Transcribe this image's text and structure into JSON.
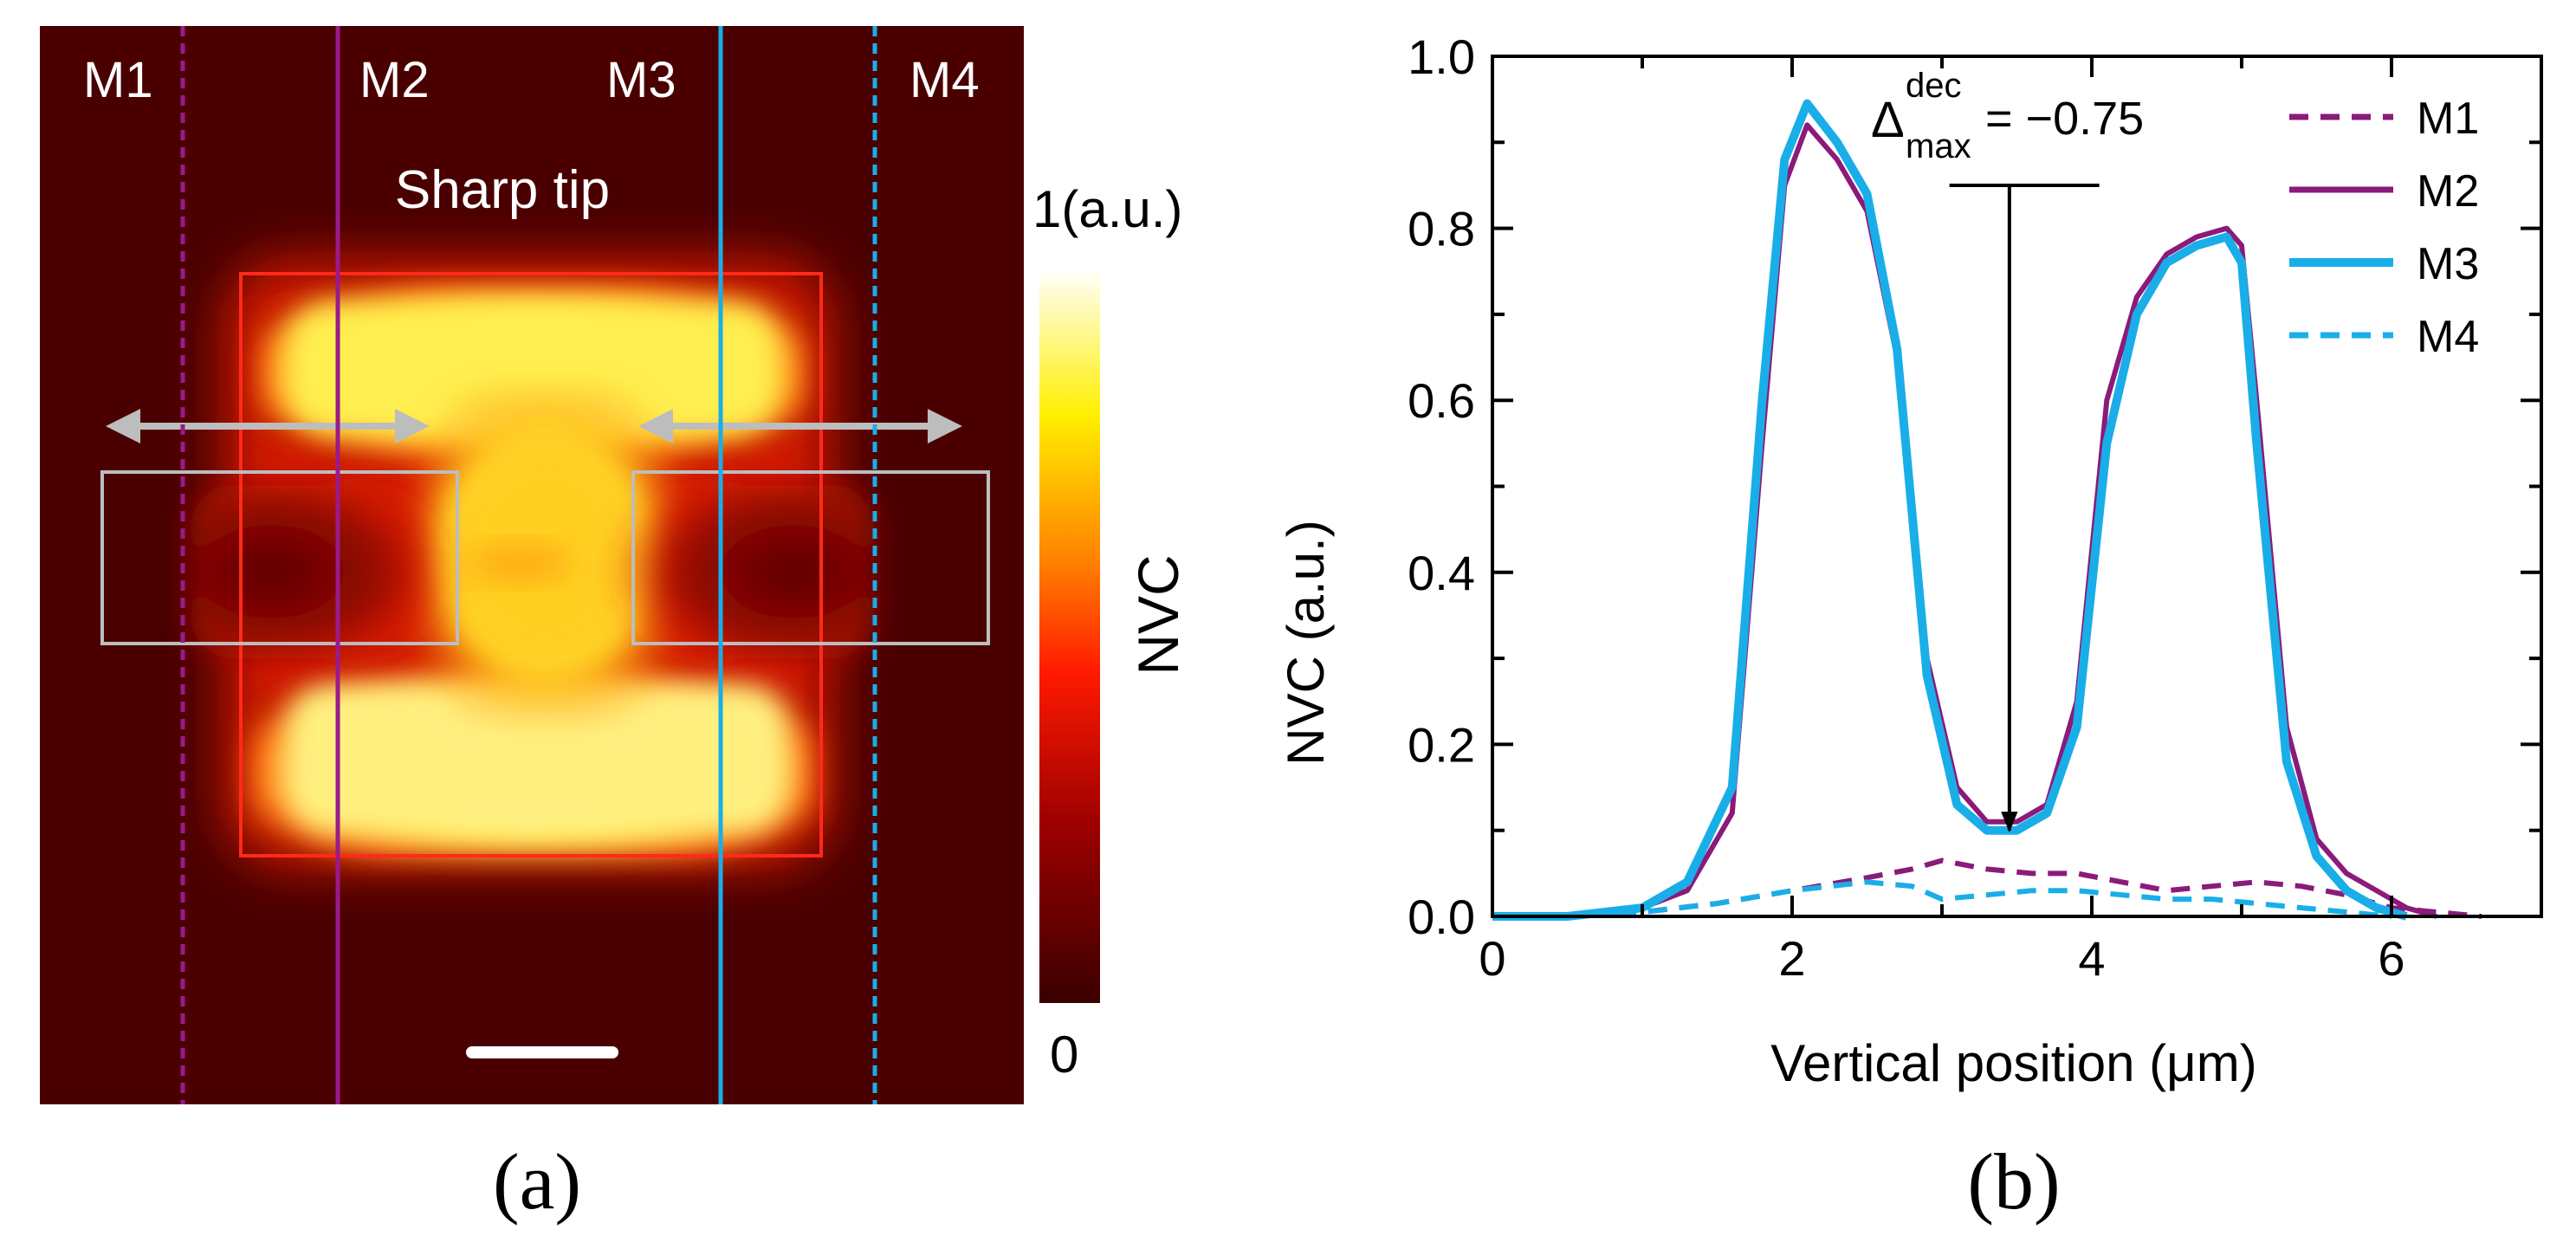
{
  "panel_a": {
    "caption": "(a)",
    "title": "Sharp tip",
    "line_labels": [
      "M1",
      "M2",
      "M3",
      "M4"
    ],
    "colorbar": {
      "max_label": "1(a.u.)",
      "min_label": "0",
      "label": "NVC"
    },
    "colors": {
      "M1": "#8b1a7a",
      "M2": "#8b1a7a",
      "M3": "#19aee8",
      "M4": "#19aee8",
      "box_red": "#ff2a1a",
      "box_gray": "#bdbdbd"
    }
  },
  "panel_b": {
    "caption": "(b)",
    "annotation": {
      "symbol": "Δ",
      "superscript": "dec",
      "subscript": "max",
      "value": "= −0.75"
    }
  },
  "chart_data": {
    "type": "line",
    "xlabel": "Vertical position (μm)",
    "ylabel": "NVC (a.u.)",
    "xlim": [
      0,
      7
    ],
    "ylim": [
      0,
      1.0
    ],
    "xticks": [
      0,
      2,
      4,
      6
    ],
    "yticks": [
      0.0,
      0.2,
      0.4,
      0.6,
      0.8,
      1.0
    ],
    "ytick_labels": [
      "0.0",
      "0.2",
      "0.4",
      "0.6",
      "0.8",
      "1.0"
    ],
    "legend_position": "top-right",
    "series": [
      {
        "name": "M1",
        "color": "#8b1a7a",
        "dash": "dashed",
        "x": [
          0,
          0.5,
          1.0,
          1.5,
          2.0,
          2.5,
          2.8,
          3.0,
          3.3,
          3.6,
          3.9,
          4.2,
          4.5,
          4.8,
          5.1,
          5.4,
          5.7,
          6.0,
          6.3,
          6.6
        ],
        "y": [
          0.0,
          0.0,
          0.005,
          0.015,
          0.03,
          0.045,
          0.055,
          0.065,
          0.055,
          0.05,
          0.05,
          0.04,
          0.03,
          0.035,
          0.04,
          0.035,
          0.025,
          0.01,
          0.005,
          0.0
        ]
      },
      {
        "name": "M2",
        "color": "#8b1a7a",
        "dash": "solid",
        "x": [
          0,
          0.5,
          1.0,
          1.3,
          1.6,
          1.8,
          1.95,
          2.1,
          2.3,
          2.5,
          2.7,
          2.9,
          3.1,
          3.3,
          3.5,
          3.7,
          3.9,
          4.1,
          4.3,
          4.5,
          4.7,
          4.9,
          5.0,
          5.1,
          5.3,
          5.5,
          5.7,
          5.9,
          6.1,
          6.3
        ],
        "y": [
          0.0,
          0.0,
          0.01,
          0.03,
          0.12,
          0.55,
          0.85,
          0.92,
          0.88,
          0.82,
          0.65,
          0.3,
          0.15,
          0.11,
          0.11,
          0.13,
          0.25,
          0.6,
          0.72,
          0.77,
          0.79,
          0.8,
          0.78,
          0.6,
          0.22,
          0.09,
          0.05,
          0.03,
          0.01,
          0.0
        ]
      },
      {
        "name": "M3",
        "color": "#19aee8",
        "dash": "solid",
        "x": [
          0,
          0.5,
          1.0,
          1.3,
          1.6,
          1.8,
          1.95,
          2.1,
          2.3,
          2.5,
          2.7,
          2.9,
          3.1,
          3.3,
          3.5,
          3.7,
          3.9,
          4.1,
          4.3,
          4.5,
          4.7,
          4.9,
          5.0,
          5.1,
          5.3,
          5.5,
          5.7,
          5.9,
          6.1
        ],
        "y": [
          0.0,
          0.0,
          0.01,
          0.04,
          0.15,
          0.6,
          0.88,
          0.945,
          0.9,
          0.84,
          0.66,
          0.28,
          0.13,
          0.1,
          0.1,
          0.12,
          0.22,
          0.55,
          0.7,
          0.76,
          0.78,
          0.79,
          0.76,
          0.55,
          0.18,
          0.07,
          0.03,
          0.01,
          0.0
        ]
      },
      {
        "name": "M4",
        "color": "#19aee8",
        "dash": "dashed",
        "x": [
          0,
          0.5,
          1.0,
          1.5,
          2.0,
          2.5,
          2.8,
          3.0,
          3.3,
          3.6,
          3.9,
          4.2,
          4.5,
          4.8,
          5.1,
          5.4,
          5.7,
          6.0
        ],
        "y": [
          0.0,
          0.0,
          0.005,
          0.015,
          0.03,
          0.04,
          0.035,
          0.02,
          0.025,
          0.03,
          0.03,
          0.025,
          0.02,
          0.02,
          0.015,
          0.01,
          0.005,
          0.0
        ]
      }
    ],
    "annotation_arrow": {
      "x": 3.45,
      "y_from": 0.85,
      "y_to": 0.1,
      "hbar_x": [
        3.05,
        4.05
      ]
    }
  }
}
